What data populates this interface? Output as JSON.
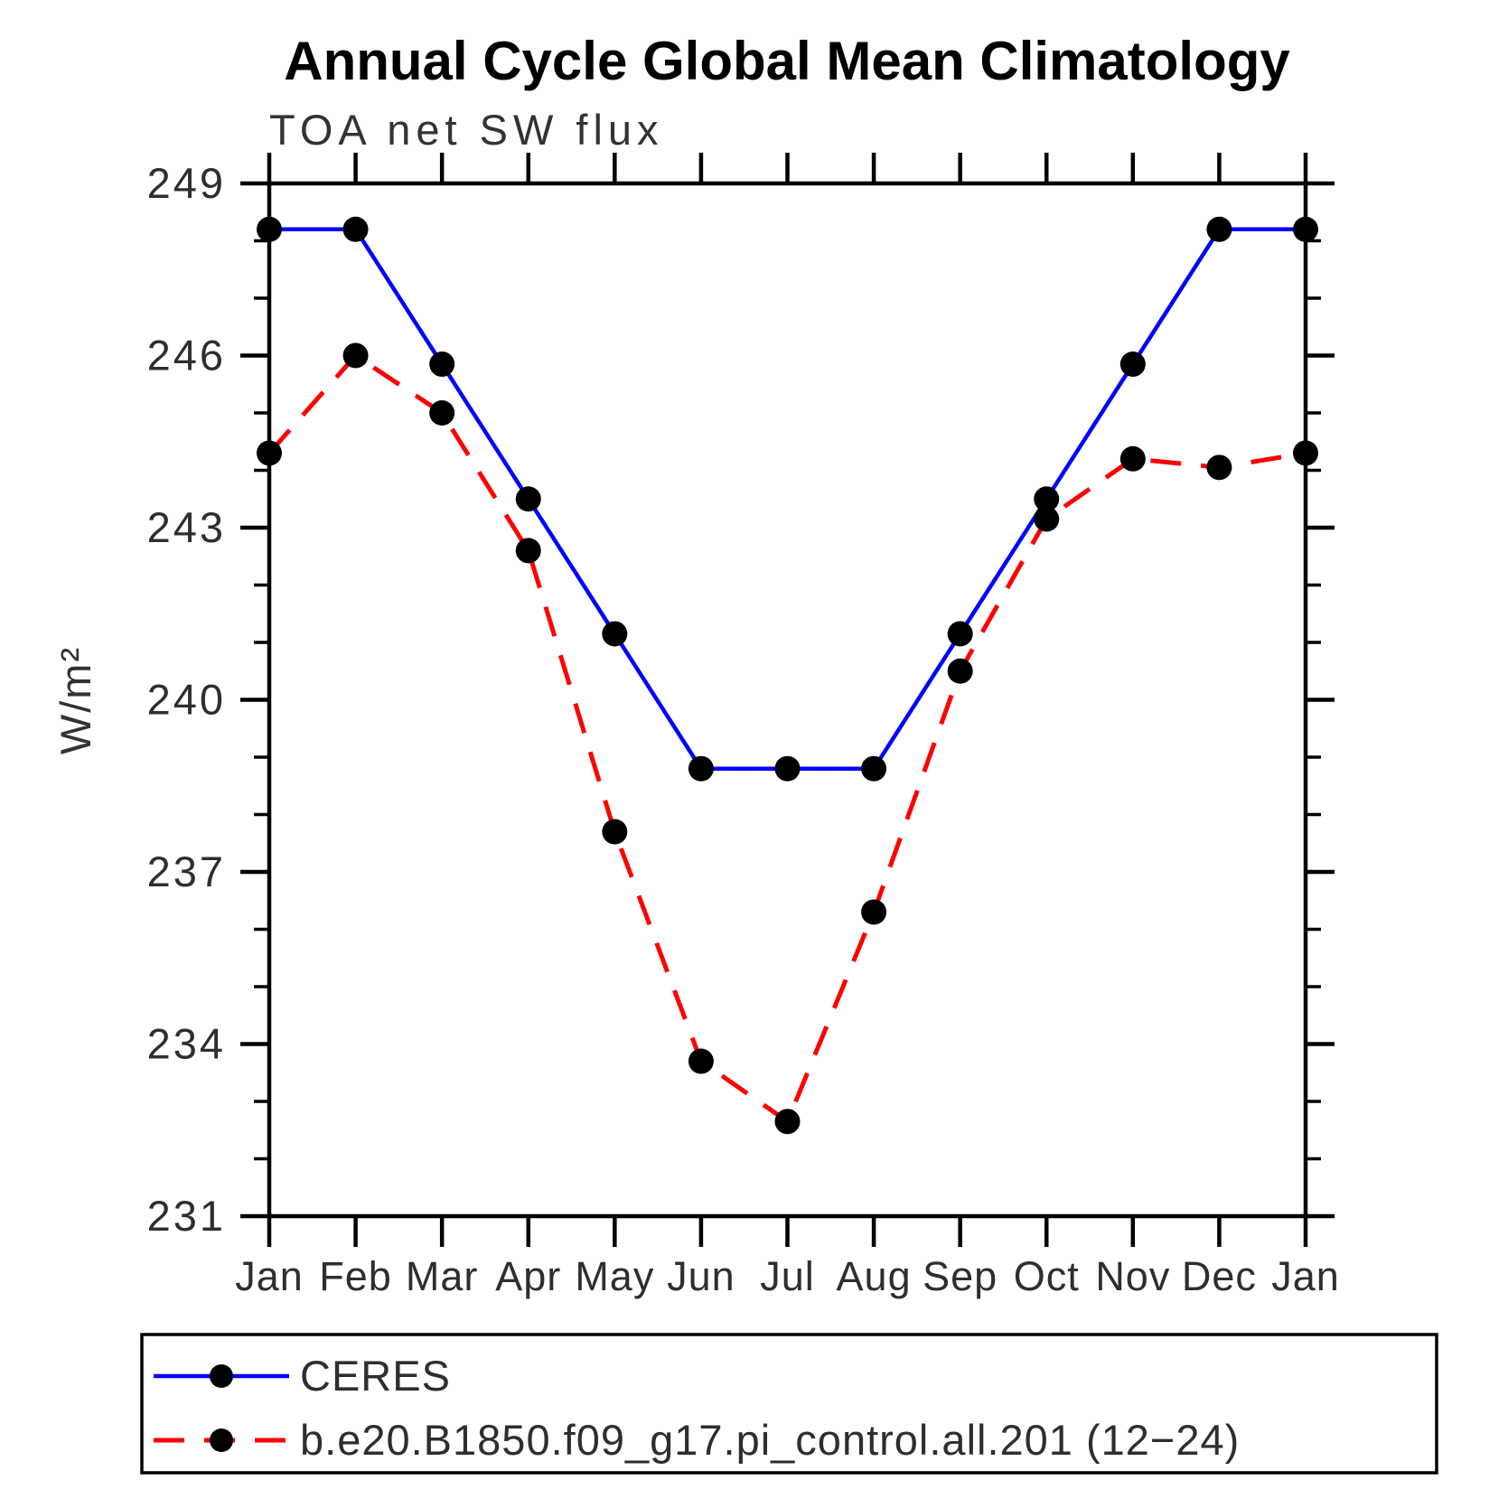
{
  "chart_data": {
    "type": "line",
    "title": "Annual Cycle Global Mean Climatology",
    "subtitle": "TOA net SW flux",
    "ylabel": "W/m²",
    "xlabel": "",
    "categories": [
      "Jan",
      "Feb",
      "Mar",
      "Apr",
      "May",
      "Jun",
      "Jul",
      "Aug",
      "Sep",
      "Oct",
      "Nov",
      "Dec",
      "Jan"
    ],
    "ylim": [
      231,
      249
    ],
    "ytick_major_step": 3,
    "ytick_minor_step": 1,
    "grid": false,
    "legend_position": "bottom-left-box",
    "marker": "filled-circle",
    "marker_color": "#000000",
    "series": [
      {
        "name": "CERES",
        "color": "#0000ff",
        "style": "solid",
        "values": [
          248.2,
          248.2,
          245.85,
          243.5,
          241.15,
          238.8,
          238.8,
          238.8,
          241.15,
          243.5,
          245.85,
          248.2,
          248.2
        ]
      },
      {
        "name": "b.e20.B1850.f09_g17.pi_control.all.201 (12−24)",
        "color": "#ff0000",
        "style": "dashed",
        "values": [
          244.3,
          246.0,
          245.0,
          242.6,
          237.7,
          233.7,
          232.65,
          236.3,
          240.5,
          243.15,
          244.2,
          244.05,
          244.3
        ]
      }
    ]
  }
}
